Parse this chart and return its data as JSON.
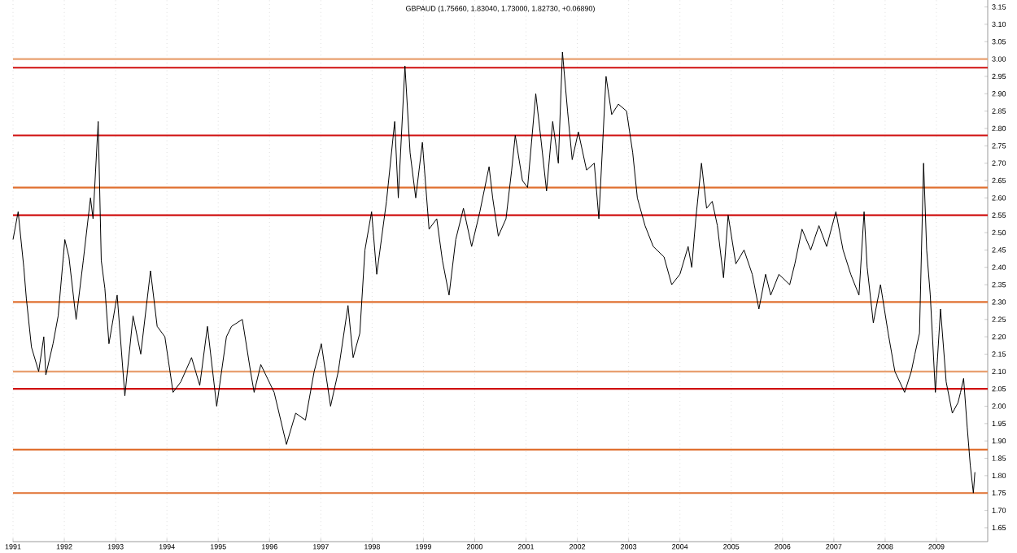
{
  "chart_data": {
    "type": "line",
    "title": "GBPAUD (1.75660, 1.83040, 1.73000, 1.82730, +0.06890)",
    "x": [
      1991.0,
      1991.1,
      1991.21,
      1991.26,
      1991.36,
      1991.5,
      1991.6,
      1991.64,
      1991.78,
      1991.88,
      1992.01,
      1992.09,
      1992.23,
      1992.37,
      1992.51,
      1992.56,
      1992.66,
      1992.72,
      1992.79,
      1992.87,
      1993.03,
      1993.18,
      1993.34,
      1993.49,
      1993.68,
      1993.81,
      1993.96,
      1994.12,
      1994.27,
      1994.48,
      1994.64,
      1994.79,
      1994.97,
      1995.16,
      1995.26,
      1995.47,
      1995.63,
      1995.7,
      1995.83,
      1996.09,
      1996.33,
      1996.51,
      1996.7,
      1996.87,
      1997.01,
      1997.19,
      1997.34,
      1997.53,
      1997.63,
      1997.76,
      1997.86,
      1997.99,
      1998.09,
      1998.28,
      1998.44,
      1998.51,
      1998.64,
      1998.74,
      1998.85,
      1998.98,
      1999.11,
      1999.26,
      1999.37,
      1999.5,
      1999.63,
      1999.78,
      1999.94,
      2000.1,
      2000.28,
      2000.35,
      2000.46,
      2000.61,
      2000.72,
      2000.79,
      2000.93,
      2001.03,
      2001.19,
      2001.29,
      2001.4,
      2001.52,
      2001.63,
      2001.71,
      2001.81,
      2001.9,
      2002.02,
      2002.18,
      2002.33,
      2002.42,
      2002.56,
      2002.67,
      2002.8,
      2002.96,
      2003.08,
      2003.17,
      2003.32,
      2003.48,
      2003.69,
      2003.84,
      2004.0,
      2004.16,
      2004.23,
      2004.31,
      2004.42,
      2004.52,
      2004.63,
      2004.73,
      2004.85,
      2004.94,
      2005.09,
      2005.25,
      2005.41,
      2005.54,
      2005.67,
      2005.77,
      2005.93,
      2006.14,
      2006.24,
      2006.38,
      2006.55,
      2006.71,
      2006.86,
      2007.04,
      2007.18,
      2007.33,
      2007.49,
      2007.59,
      2007.65,
      2007.77,
      2007.91,
      2008.06,
      2008.19,
      2008.38,
      2008.51,
      2008.58,
      2008.67,
      2008.75,
      2008.81,
      2008.88,
      2008.98,
      2009.08,
      2009.19,
      2009.31,
      2009.42,
      2009.47,
      2009.53,
      2009.6,
      2009.66,
      2009.72,
      2009.75
    ],
    "series": [
      {
        "color": "#000000",
        "values": [
          2.48,
          2.56,
          2.4,
          2.31,
          2.17,
          2.1,
          2.2,
          2.09,
          2.18,
          2.26,
          2.48,
          2.43,
          2.25,
          2.42,
          2.6,
          2.54,
          2.82,
          2.42,
          2.34,
          2.18,
          2.32,
          2.03,
          2.26,
          2.15,
          2.39,
          2.23,
          2.2,
          2.04,
          2.07,
          2.14,
          2.06,
          2.23,
          2.0,
          2.2,
          2.23,
          2.25,
          2.1,
          2.04,
          2.12,
          2.04,
          1.89,
          1.98,
          1.96,
          2.1,
          2.18,
          2.0,
          2.1,
          2.29,
          2.14,
          2.21,
          2.45,
          2.56,
          2.38,
          2.59,
          2.82,
          2.6,
          2.98,
          2.73,
          2.6,
          2.76,
          2.51,
          2.54,
          2.42,
          2.32,
          2.48,
          2.57,
          2.46,
          2.56,
          2.69,
          2.6,
          2.49,
          2.54,
          2.68,
          2.78,
          2.65,
          2.63,
          2.9,
          2.77,
          2.62,
          2.82,
          2.7,
          3.02,
          2.85,
          2.71,
          2.79,
          2.68,
          2.7,
          2.54,
          2.95,
          2.84,
          2.87,
          2.85,
          2.73,
          2.6,
          2.52,
          2.46,
          2.43,
          2.35,
          2.38,
          2.46,
          2.4,
          2.54,
          2.7,
          2.57,
          2.59,
          2.52,
          2.37,
          2.55,
          2.41,
          2.45,
          2.38,
          2.28,
          2.38,
          2.32,
          2.38,
          2.35,
          2.41,
          2.51,
          2.45,
          2.52,
          2.46,
          2.56,
          2.45,
          2.38,
          2.32,
          2.56,
          2.4,
          2.24,
          2.35,
          2.21,
          2.1,
          2.04,
          2.1,
          2.15,
          2.21,
          2.7,
          2.45,
          2.32,
          2.04,
          2.28,
          2.07,
          1.98,
          2.01,
          2.04,
          2.08,
          1.94,
          1.83,
          1.75,
          1.81
        ]
      }
    ],
    "xlim": [
      1991,
      2010
    ],
    "ylim": [
      1.61,
      3.17
    ],
    "xticks": [
      1991,
      1992,
      1993,
      1994,
      1995,
      1996,
      1997,
      1998,
      1999,
      2000,
      2001,
      2002,
      2003,
      2004,
      2005,
      2006,
      2007,
      2008,
      2009
    ],
    "yticks": [
      {
        "value": 1.65,
        "label": "1.65"
      },
      {
        "value": 1.7,
        "label": "1.70"
      },
      {
        "value": 1.75,
        "label": "1.75"
      },
      {
        "value": 1.8,
        "label": "1.80"
      },
      {
        "value": 1.85,
        "label": "1.85"
      },
      {
        "value": 1.9,
        "label": "1.90"
      },
      {
        "value": 1.95,
        "label": "1.95"
      },
      {
        "value": 2.0,
        "label": "2.00"
      },
      {
        "value": 2.05,
        "label": "2.05"
      },
      {
        "value": 2.1,
        "label": "2.10"
      },
      {
        "value": 2.15,
        "label": "2.15"
      },
      {
        "value": 2.2,
        "label": "2.20"
      },
      {
        "value": 2.25,
        "label": "2.25"
      },
      {
        "value": 2.3,
        "label": "2.30"
      },
      {
        "value": 2.35,
        "label": "2.35"
      },
      {
        "value": 2.4,
        "label": "2.40"
      },
      {
        "value": 2.45,
        "label": "2.45"
      },
      {
        "value": 2.5,
        "label": "2.50"
      },
      {
        "value": 2.55,
        "label": "2.55"
      },
      {
        "value": 2.6,
        "label": "2.60"
      },
      {
        "value": 2.65,
        "label": "2.65"
      },
      {
        "value": 2.7,
        "label": "2.70"
      },
      {
        "value": 2.75,
        "label": "2.75"
      },
      {
        "value": 2.8,
        "label": "2.80"
      },
      {
        "value": 2.85,
        "label": "2.85"
      },
      {
        "value": 2.9,
        "label": "2.90"
      },
      {
        "value": 2.95,
        "label": "2.95"
      },
      {
        "value": 3.0,
        "label": "3.00"
      },
      {
        "value": 3.05,
        "label": "3.05"
      },
      {
        "value": 3.1,
        "label": "3.10"
      },
      {
        "value": 3.15,
        "label": "3.15"
      }
    ],
    "ref_lines": [
      {
        "axis": "y",
        "value": 3.0,
        "color": "#e8a070"
      },
      {
        "axis": "y",
        "value": 2.975,
        "color": "#d01010"
      },
      {
        "axis": "y",
        "value": 2.78,
        "color": "#d01010"
      },
      {
        "axis": "y",
        "value": 2.63,
        "color": "#e07030"
      },
      {
        "axis": "y",
        "value": 2.55,
        "color": "#d01010"
      },
      {
        "axis": "y",
        "value": 2.3,
        "color": "#e07030"
      },
      {
        "axis": "y",
        "value": 2.1,
        "color": "#e8a070"
      },
      {
        "axis": "y",
        "value": 2.05,
        "color": "#d01010"
      },
      {
        "axis": "y",
        "value": 1.875,
        "color": "#e07030"
      },
      {
        "axis": "y",
        "value": 1.75,
        "color": "#e07030"
      }
    ],
    "grid": "x",
    "marker": "none",
    "line_style": "solid"
  }
}
